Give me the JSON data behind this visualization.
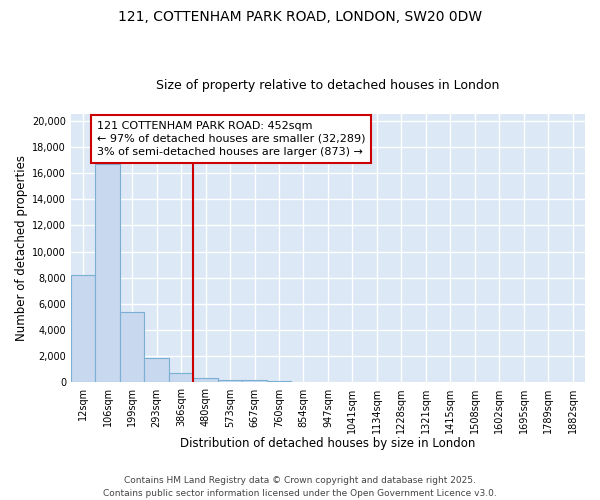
{
  "title_line1": "121, COTTENHAM PARK ROAD, LONDON, SW20 0DW",
  "title_line2": "Size of property relative to detached houses in London",
  "xlabel": "Distribution of detached houses by size in London",
  "ylabel": "Number of detached properties",
  "categories": [
    "12sqm",
    "106sqm",
    "199sqm",
    "293sqm",
    "386sqm",
    "480sqm",
    "573sqm",
    "667sqm",
    "760sqm",
    "854sqm",
    "947sqm",
    "1041sqm",
    "1134sqm",
    "1228sqm",
    "1321sqm",
    "1415sqm",
    "1508sqm",
    "1602sqm",
    "1695sqm",
    "1789sqm",
    "1882sqm"
  ],
  "values": [
    8200,
    16700,
    5400,
    1850,
    750,
    320,
    220,
    175,
    120,
    0,
    0,
    0,
    0,
    0,
    0,
    0,
    0,
    0,
    0,
    0,
    0
  ],
  "bar_color": "#c8d8ee",
  "bar_edge_color": "#7bafd4",
  "vline_x": 4.5,
  "vline_color": "#cc0000",
  "annotation_line1": "121 COTTENHAM PARK ROAD: 452sqm",
  "annotation_line2": "← 97% of detached houses are smaller (32,289)",
  "annotation_line3": "3% of semi-detached houses are larger (873) →",
  "box_color": "#ffffff",
  "box_edge_color": "#cc0000",
  "ylim": [
    0,
    20500
  ],
  "yticks": [
    0,
    2000,
    4000,
    6000,
    8000,
    10000,
    12000,
    14000,
    16000,
    18000,
    20000
  ],
  "background_color": "#dce8f5",
  "fig_background_color": "#ffffff",
  "grid_color": "#ffffff",
  "footer_text": "Contains HM Land Registry data © Crown copyright and database right 2025.\nContains public sector information licensed under the Open Government Licence v3.0.",
  "title_fontsize": 10,
  "subtitle_fontsize": 9,
  "axis_label_fontsize": 8.5,
  "tick_fontsize": 7,
  "annotation_fontsize": 8,
  "footer_fontsize": 6.5
}
